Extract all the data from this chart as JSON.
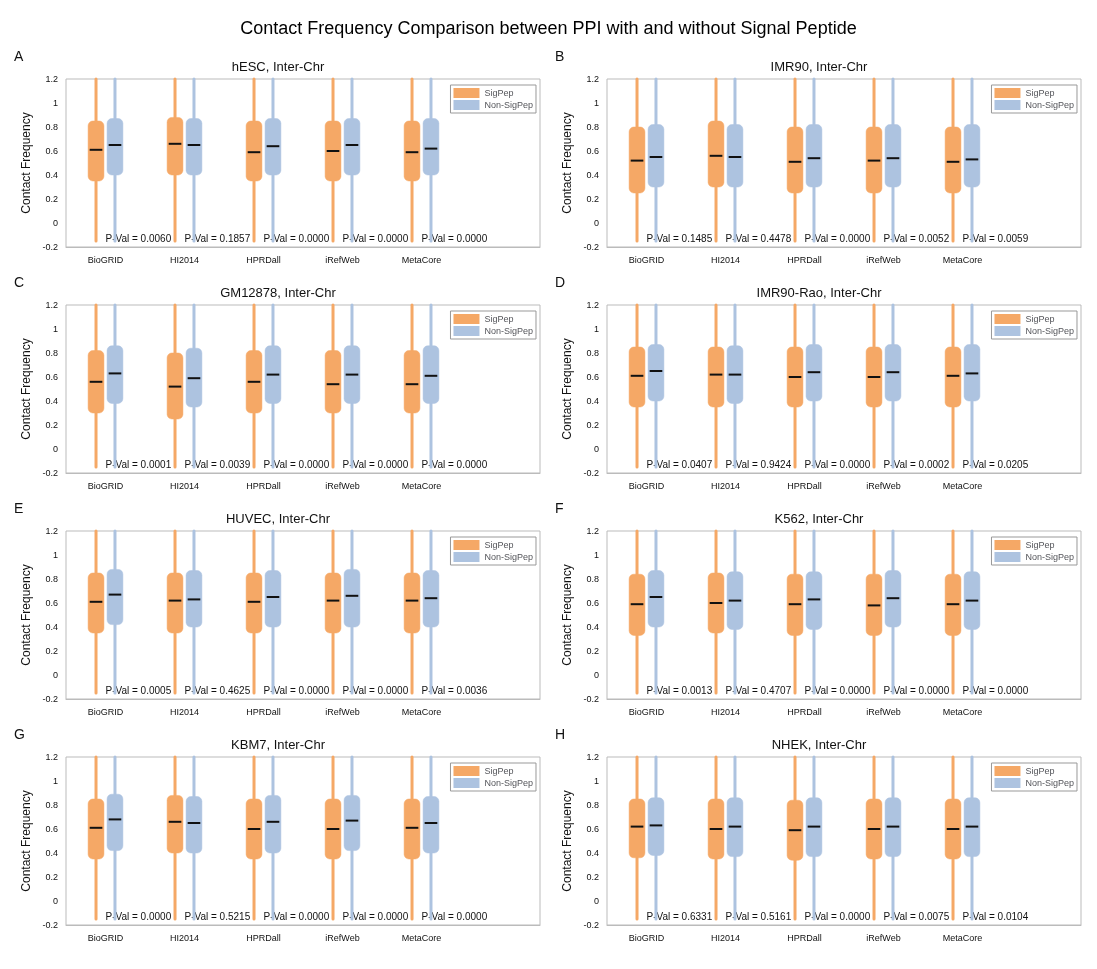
{
  "chart_data": [
    {
      "type": "other",
      "title": "Contact Frequency Comparison between PPI with and without Signal Peptide"
    },
    {
      "type": "box",
      "title": "hESC, Inter-Chr",
      "subtitle": "A",
      "ylabel": "Contact Frequency",
      "categories": [
        "BioGRID",
        "HI2014",
        "HPRDall",
        "iRefWeb",
        "MetaCore"
      ],
      "ylim": [
        -0.2,
        1.2
      ],
      "yticks": [
        -0.2,
        0,
        0.2,
        0.4,
        0.6,
        0.8,
        1,
        1.2
      ],
      "legend": "top right",
      "series": [
        {
          "name": "SigPep",
          "color": "#f5a866",
          "boxes": [
            {
              "low": -0.15,
              "q1": 0.35,
              "median": 0.61,
              "q3": 0.85,
              "high": 1.2
            },
            {
              "low": -0.15,
              "q1": 0.4,
              "median": 0.66,
              "q3": 0.88,
              "high": 1.2
            },
            {
              "low": -0.15,
              "q1": 0.35,
              "median": 0.59,
              "q3": 0.85,
              "high": 1.2
            },
            {
              "low": -0.15,
              "q1": 0.35,
              "median": 0.6,
              "q3": 0.85,
              "high": 1.2
            },
            {
              "low": -0.15,
              "q1": 0.35,
              "median": 0.59,
              "q3": 0.85,
              "high": 1.2
            }
          ]
        },
        {
          "name": "Non-SigPep",
          "color": "#adc3e0",
          "boxes": [
            {
              "low": -0.15,
              "q1": 0.4,
              "median": 0.65,
              "q3": 0.87,
              "high": 1.2
            },
            {
              "low": -0.15,
              "q1": 0.4,
              "median": 0.65,
              "q3": 0.87,
              "high": 1.2
            },
            {
              "low": -0.15,
              "q1": 0.4,
              "median": 0.64,
              "q3": 0.87,
              "high": 1.2
            },
            {
              "low": -0.15,
              "q1": 0.4,
              "median": 0.65,
              "q3": 0.87,
              "high": 1.2
            },
            {
              "low": -0.15,
              "q1": 0.4,
              "median": 0.62,
              "q3": 0.87,
              "high": 1.2
            }
          ]
        }
      ],
      "annotations": [
        "P-Val = 0.0060",
        "P-Val = 0.1857",
        "P-Val = 0.0000",
        "P-Val = 0.0000",
        "P-Val = 0.0000"
      ]
    },
    {
      "type": "box",
      "title": "IMR90, Inter-Chr",
      "subtitle": "B",
      "ylabel": "Contact Frequency",
      "categories": [
        "BioGRID",
        "HI2014",
        "HPRDall",
        "iRefWeb",
        "MetaCore"
      ],
      "ylim": [
        -0.2,
        1.2
      ],
      "yticks": [
        -0.2,
        0,
        0.2,
        0.4,
        0.6,
        0.8,
        1,
        1.2
      ],
      "legend": "top right",
      "series": [
        {
          "name": "SigPep",
          "color": "#f5a866",
          "boxes": [
            {
              "low": -0.15,
              "q1": 0.25,
              "median": 0.52,
              "q3": 0.8,
              "high": 1.2
            },
            {
              "low": -0.15,
              "q1": 0.3,
              "median": 0.56,
              "q3": 0.85,
              "high": 1.2
            },
            {
              "low": -0.15,
              "q1": 0.25,
              "median": 0.51,
              "q3": 0.8,
              "high": 1.2
            },
            {
              "low": -0.15,
              "q1": 0.25,
              "median": 0.52,
              "q3": 0.8,
              "high": 1.2
            },
            {
              "low": -0.15,
              "q1": 0.25,
              "median": 0.51,
              "q3": 0.8,
              "high": 1.2
            }
          ]
        },
        {
          "name": "Non-SigPep",
          "color": "#adc3e0",
          "boxes": [
            {
              "low": -0.15,
              "q1": 0.3,
              "median": 0.55,
              "q3": 0.82,
              "high": 1.2
            },
            {
              "low": -0.15,
              "q1": 0.3,
              "median": 0.55,
              "q3": 0.82,
              "high": 1.2
            },
            {
              "low": -0.15,
              "q1": 0.3,
              "median": 0.54,
              "q3": 0.82,
              "high": 1.2
            },
            {
              "low": -0.15,
              "q1": 0.3,
              "median": 0.54,
              "q3": 0.82,
              "high": 1.2
            },
            {
              "low": -0.15,
              "q1": 0.3,
              "median": 0.53,
              "q3": 0.82,
              "high": 1.2
            }
          ]
        }
      ],
      "annotations": [
        "P-Val = 0.1485",
        "P-Val = 0.4478",
        "P-Val = 0.0000",
        "P-Val = 0.0052",
        "P-Val = 0.0059"
      ]
    },
    {
      "type": "box",
      "title": "GM12878, Inter-Chr",
      "subtitle": "C",
      "ylabel": "Contact Frequency",
      "categories": [
        "BioGRID",
        "HI2014",
        "HPRDall",
        "iRefWeb",
        "MetaCore"
      ],
      "ylim": [
        -0.2,
        1.2
      ],
      "yticks": [
        -0.2,
        0,
        0.2,
        0.4,
        0.6,
        0.8,
        1,
        1.2
      ],
      "legend": "top right",
      "series": [
        {
          "name": "SigPep",
          "color": "#f5a866",
          "boxes": [
            {
              "low": -0.15,
              "q1": 0.3,
              "median": 0.56,
              "q3": 0.82,
              "high": 1.2
            },
            {
              "low": -0.15,
              "q1": 0.25,
              "median": 0.52,
              "q3": 0.8,
              "high": 1.2
            },
            {
              "low": -0.15,
              "q1": 0.3,
              "median": 0.56,
              "q3": 0.82,
              "high": 1.2
            },
            {
              "low": -0.15,
              "q1": 0.3,
              "median": 0.54,
              "q3": 0.82,
              "high": 1.2
            },
            {
              "low": -0.15,
              "q1": 0.3,
              "median": 0.54,
              "q3": 0.82,
              "high": 1.2
            }
          ]
        },
        {
          "name": "Non-SigPep",
          "color": "#adc3e0",
          "boxes": [
            {
              "low": -0.15,
              "q1": 0.38,
              "median": 0.63,
              "q3": 0.86,
              "high": 1.2
            },
            {
              "low": -0.15,
              "q1": 0.35,
              "median": 0.59,
              "q3": 0.84,
              "high": 1.2
            },
            {
              "low": -0.15,
              "q1": 0.38,
              "median": 0.62,
              "q3": 0.86,
              "high": 1.2
            },
            {
              "low": -0.15,
              "q1": 0.38,
              "median": 0.62,
              "q3": 0.86,
              "high": 1.2
            },
            {
              "low": -0.15,
              "q1": 0.38,
              "median": 0.61,
              "q3": 0.86,
              "high": 1.2
            }
          ]
        }
      ],
      "annotations": [
        "P-Val = 0.0001",
        "P-Val = 0.0039",
        "P-Val = 0.0000",
        "P-Val = 0.0000",
        "P-Val = 0.0000"
      ]
    },
    {
      "type": "box",
      "title": "IMR90-Rao, Inter-Chr",
      "subtitle": "D",
      "ylabel": "Contact Frequency",
      "categories": [
        "BioGRID",
        "HI2014",
        "HPRDall",
        "iRefWeb",
        "MetaCore"
      ],
      "ylim": [
        -0.2,
        1.2
      ],
      "yticks": [
        -0.2,
        0,
        0.2,
        0.4,
        0.6,
        0.8,
        1,
        1.2
      ],
      "legend": "top right",
      "series": [
        {
          "name": "SigPep",
          "color": "#f5a866",
          "boxes": [
            {
              "low": -0.15,
              "q1": 0.35,
              "median": 0.61,
              "q3": 0.85,
              "high": 1.2
            },
            {
              "low": -0.15,
              "q1": 0.35,
              "median": 0.62,
              "q3": 0.85,
              "high": 1.2
            },
            {
              "low": -0.15,
              "q1": 0.35,
              "median": 0.6,
              "q3": 0.85,
              "high": 1.2
            },
            {
              "low": -0.15,
              "q1": 0.35,
              "median": 0.6,
              "q3": 0.85,
              "high": 1.2
            },
            {
              "low": -0.15,
              "q1": 0.35,
              "median": 0.61,
              "q3": 0.85,
              "high": 1.2
            }
          ]
        },
        {
          "name": "Non-SigPep",
          "color": "#adc3e0",
          "boxes": [
            {
              "low": -0.15,
              "q1": 0.4,
              "median": 0.65,
              "q3": 0.87,
              "high": 1.2
            },
            {
              "low": -0.15,
              "q1": 0.38,
              "median": 0.62,
              "q3": 0.86,
              "high": 1.2
            },
            {
              "low": -0.15,
              "q1": 0.4,
              "median": 0.64,
              "q3": 0.87,
              "high": 1.2
            },
            {
              "low": -0.15,
              "q1": 0.4,
              "median": 0.64,
              "q3": 0.87,
              "high": 1.2
            },
            {
              "low": -0.15,
              "q1": 0.4,
              "median": 0.63,
              "q3": 0.87,
              "high": 1.2
            }
          ]
        }
      ],
      "annotations": [
        "P-Val = 0.0407",
        "P-Val = 0.9424",
        "P-Val = 0.0000",
        "P-Val = 0.0002",
        "P-Val = 0.0205"
      ]
    },
    {
      "type": "box",
      "title": "HUVEC, Inter-Chr",
      "subtitle": "E",
      "ylabel": "Contact Frequency",
      "categories": [
        "BioGRID",
        "HI2014",
        "HPRDall",
        "iRefWeb",
        "MetaCore"
      ],
      "ylim": [
        -0.2,
        1.2
      ],
      "yticks": [
        -0.2,
        0,
        0.2,
        0.4,
        0.6,
        0.8,
        1,
        1.2
      ],
      "legend": "top right",
      "series": [
        {
          "name": "SigPep",
          "color": "#f5a866",
          "boxes": [
            {
              "low": -0.15,
              "q1": 0.35,
              "median": 0.61,
              "q3": 0.85,
              "high": 1.2
            },
            {
              "low": -0.15,
              "q1": 0.35,
              "median": 0.62,
              "q3": 0.85,
              "high": 1.2
            },
            {
              "low": -0.15,
              "q1": 0.35,
              "median": 0.61,
              "q3": 0.85,
              "high": 1.2
            },
            {
              "low": -0.15,
              "q1": 0.35,
              "median": 0.62,
              "q3": 0.85,
              "high": 1.2
            },
            {
              "low": -0.15,
              "q1": 0.35,
              "median": 0.62,
              "q3": 0.85,
              "high": 1.2
            }
          ]
        },
        {
          "name": "Non-SigPep",
          "color": "#adc3e0",
          "boxes": [
            {
              "low": -0.15,
              "q1": 0.42,
              "median": 0.67,
              "q3": 0.88,
              "high": 1.2
            },
            {
              "low": -0.15,
              "q1": 0.4,
              "median": 0.63,
              "q3": 0.87,
              "high": 1.2
            },
            {
              "low": -0.15,
              "q1": 0.4,
              "median": 0.65,
              "q3": 0.87,
              "high": 1.2
            },
            {
              "low": -0.15,
              "q1": 0.4,
              "median": 0.66,
              "q3": 0.88,
              "high": 1.2
            },
            {
              "low": -0.15,
              "q1": 0.4,
              "median": 0.64,
              "q3": 0.87,
              "high": 1.2
            }
          ]
        }
      ],
      "annotations": [
        "P-Val = 0.0005",
        "P-Val = 0.4625",
        "P-Val = 0.0000",
        "P-Val = 0.0000",
        "P-Val = 0.0036"
      ]
    },
    {
      "type": "box",
      "title": "K562, Inter-Chr",
      "subtitle": "F",
      "ylabel": "Contact Frequency",
      "categories": [
        "BioGRID",
        "HI2014",
        "HPRDall",
        "iRefWeb",
        "MetaCore"
      ],
      "ylim": [
        -0.2,
        1.2
      ],
      "yticks": [
        -0.2,
        0,
        0.2,
        0.4,
        0.6,
        0.8,
        1,
        1.2
      ],
      "legend": "top right",
      "series": [
        {
          "name": "SigPep",
          "color": "#f5a866",
          "boxes": [
            {
              "low": -0.15,
              "q1": 0.33,
              "median": 0.59,
              "q3": 0.84,
              "high": 1.2
            },
            {
              "low": -0.15,
              "q1": 0.35,
              "median": 0.6,
              "q3": 0.85,
              "high": 1.2
            },
            {
              "low": -0.15,
              "q1": 0.33,
              "median": 0.59,
              "q3": 0.84,
              "high": 1.2
            },
            {
              "low": -0.15,
              "q1": 0.33,
              "median": 0.58,
              "q3": 0.84,
              "high": 1.2
            },
            {
              "low": -0.15,
              "q1": 0.33,
              "median": 0.59,
              "q3": 0.84,
              "high": 1.2
            }
          ]
        },
        {
          "name": "Non-SigPep",
          "color": "#adc3e0",
          "boxes": [
            {
              "low": -0.15,
              "q1": 0.4,
              "median": 0.65,
              "q3": 0.87,
              "high": 1.2
            },
            {
              "low": -0.15,
              "q1": 0.38,
              "median": 0.62,
              "q3": 0.86,
              "high": 1.2
            },
            {
              "low": -0.15,
              "q1": 0.38,
              "median": 0.63,
              "q3": 0.86,
              "high": 1.2
            },
            {
              "low": -0.15,
              "q1": 0.4,
              "median": 0.64,
              "q3": 0.87,
              "high": 1.2
            },
            {
              "low": -0.15,
              "q1": 0.38,
              "median": 0.62,
              "q3": 0.86,
              "high": 1.2
            }
          ]
        }
      ],
      "annotations": [
        "P-Val = 0.0013",
        "P-Val = 0.4707",
        "P-Val = 0.0000",
        "P-Val = 0.0000",
        "P-Val = 0.0000"
      ]
    },
    {
      "type": "box",
      "title": "KBM7, Inter-Chr",
      "subtitle": "G",
      "ylabel": "Contact Frequency",
      "categories": [
        "BioGRID",
        "HI2014",
        "HPRDall",
        "iRefWeb",
        "MetaCore"
      ],
      "ylim": [
        -0.2,
        1.2
      ],
      "yticks": [
        -0.2,
        0,
        0.2,
        0.4,
        0.6,
        0.8,
        1,
        1.2
      ],
      "legend": "top right",
      "series": [
        {
          "name": "SigPep",
          "color": "#f5a866",
          "boxes": [
            {
              "low": -0.15,
              "q1": 0.35,
              "median": 0.61,
              "q3": 0.85,
              "high": 1.2
            },
            {
              "low": -0.15,
              "q1": 0.4,
              "median": 0.66,
              "q3": 0.88,
              "high": 1.2
            },
            {
              "low": -0.15,
              "q1": 0.35,
              "median": 0.6,
              "q3": 0.85,
              "high": 1.2
            },
            {
              "low": -0.15,
              "q1": 0.35,
              "median": 0.6,
              "q3": 0.85,
              "high": 1.2
            },
            {
              "low": -0.15,
              "q1": 0.35,
              "median": 0.61,
              "q3": 0.85,
              "high": 1.2
            }
          ]
        },
        {
          "name": "Non-SigPep",
          "color": "#adc3e0",
          "boxes": [
            {
              "low": -0.15,
              "q1": 0.42,
              "median": 0.68,
              "q3": 0.89,
              "high": 1.2
            },
            {
              "low": -0.15,
              "q1": 0.4,
              "median": 0.65,
              "q3": 0.87,
              "high": 1.2
            },
            {
              "low": -0.15,
              "q1": 0.4,
              "median": 0.66,
              "q3": 0.88,
              "high": 1.2
            },
            {
              "low": -0.15,
              "q1": 0.42,
              "median": 0.67,
              "q3": 0.88,
              "high": 1.2
            },
            {
              "low": -0.15,
              "q1": 0.4,
              "median": 0.65,
              "q3": 0.87,
              "high": 1.2
            }
          ]
        }
      ],
      "annotations": [
        "P-Val = 0.0000",
        "P-Val = 0.5215",
        "P-Val = 0.0000",
        "P-Val = 0.0000",
        "P-Val = 0.0000"
      ]
    },
    {
      "type": "box",
      "title": "NHEK, Inter-Chr",
      "subtitle": "H",
      "ylabel": "Contact Frequency",
      "categories": [
        "BioGRID",
        "HI2014",
        "HPRDall",
        "iRefWeb",
        "MetaCore"
      ],
      "ylim": [
        -0.2,
        1.2
      ],
      "yticks": [
        -0.2,
        0,
        0.2,
        0.4,
        0.6,
        0.8,
        1,
        1.2
      ],
      "legend": "top right",
      "series": [
        {
          "name": "SigPep",
          "color": "#f5a866",
          "boxes": [
            {
              "low": -0.15,
              "q1": 0.36,
              "median": 0.62,
              "q3": 0.85,
              "high": 1.2
            },
            {
              "low": -0.15,
              "q1": 0.35,
              "median": 0.6,
              "q3": 0.85,
              "high": 1.2
            },
            {
              "low": -0.15,
              "q1": 0.34,
              "median": 0.59,
              "q3": 0.84,
              "high": 1.2
            },
            {
              "low": -0.15,
              "q1": 0.35,
              "median": 0.6,
              "q3": 0.85,
              "high": 1.2
            },
            {
              "low": -0.15,
              "q1": 0.35,
              "median": 0.6,
              "q3": 0.85,
              "high": 1.2
            }
          ]
        },
        {
          "name": "Non-SigPep",
          "color": "#adc3e0",
          "boxes": [
            {
              "low": -0.15,
              "q1": 0.38,
              "median": 0.63,
              "q3": 0.86,
              "high": 1.2
            },
            {
              "low": -0.15,
              "q1": 0.37,
              "median": 0.62,
              "q3": 0.86,
              "high": 1.2
            },
            {
              "low": -0.15,
              "q1": 0.37,
              "median": 0.62,
              "q3": 0.86,
              "high": 1.2
            },
            {
              "low": -0.15,
              "q1": 0.37,
              "median": 0.62,
              "q3": 0.86,
              "high": 1.2
            },
            {
              "low": -0.15,
              "q1": 0.37,
              "median": 0.62,
              "q3": 0.86,
              "high": 1.2
            }
          ]
        }
      ],
      "annotations": [
        "P-Val = 0.6331",
        "P-Val = 0.5161",
        "P-Val = 0.0000",
        "P-Val = 0.0075",
        "P-Val = 0.0104"
      ]
    }
  ]
}
